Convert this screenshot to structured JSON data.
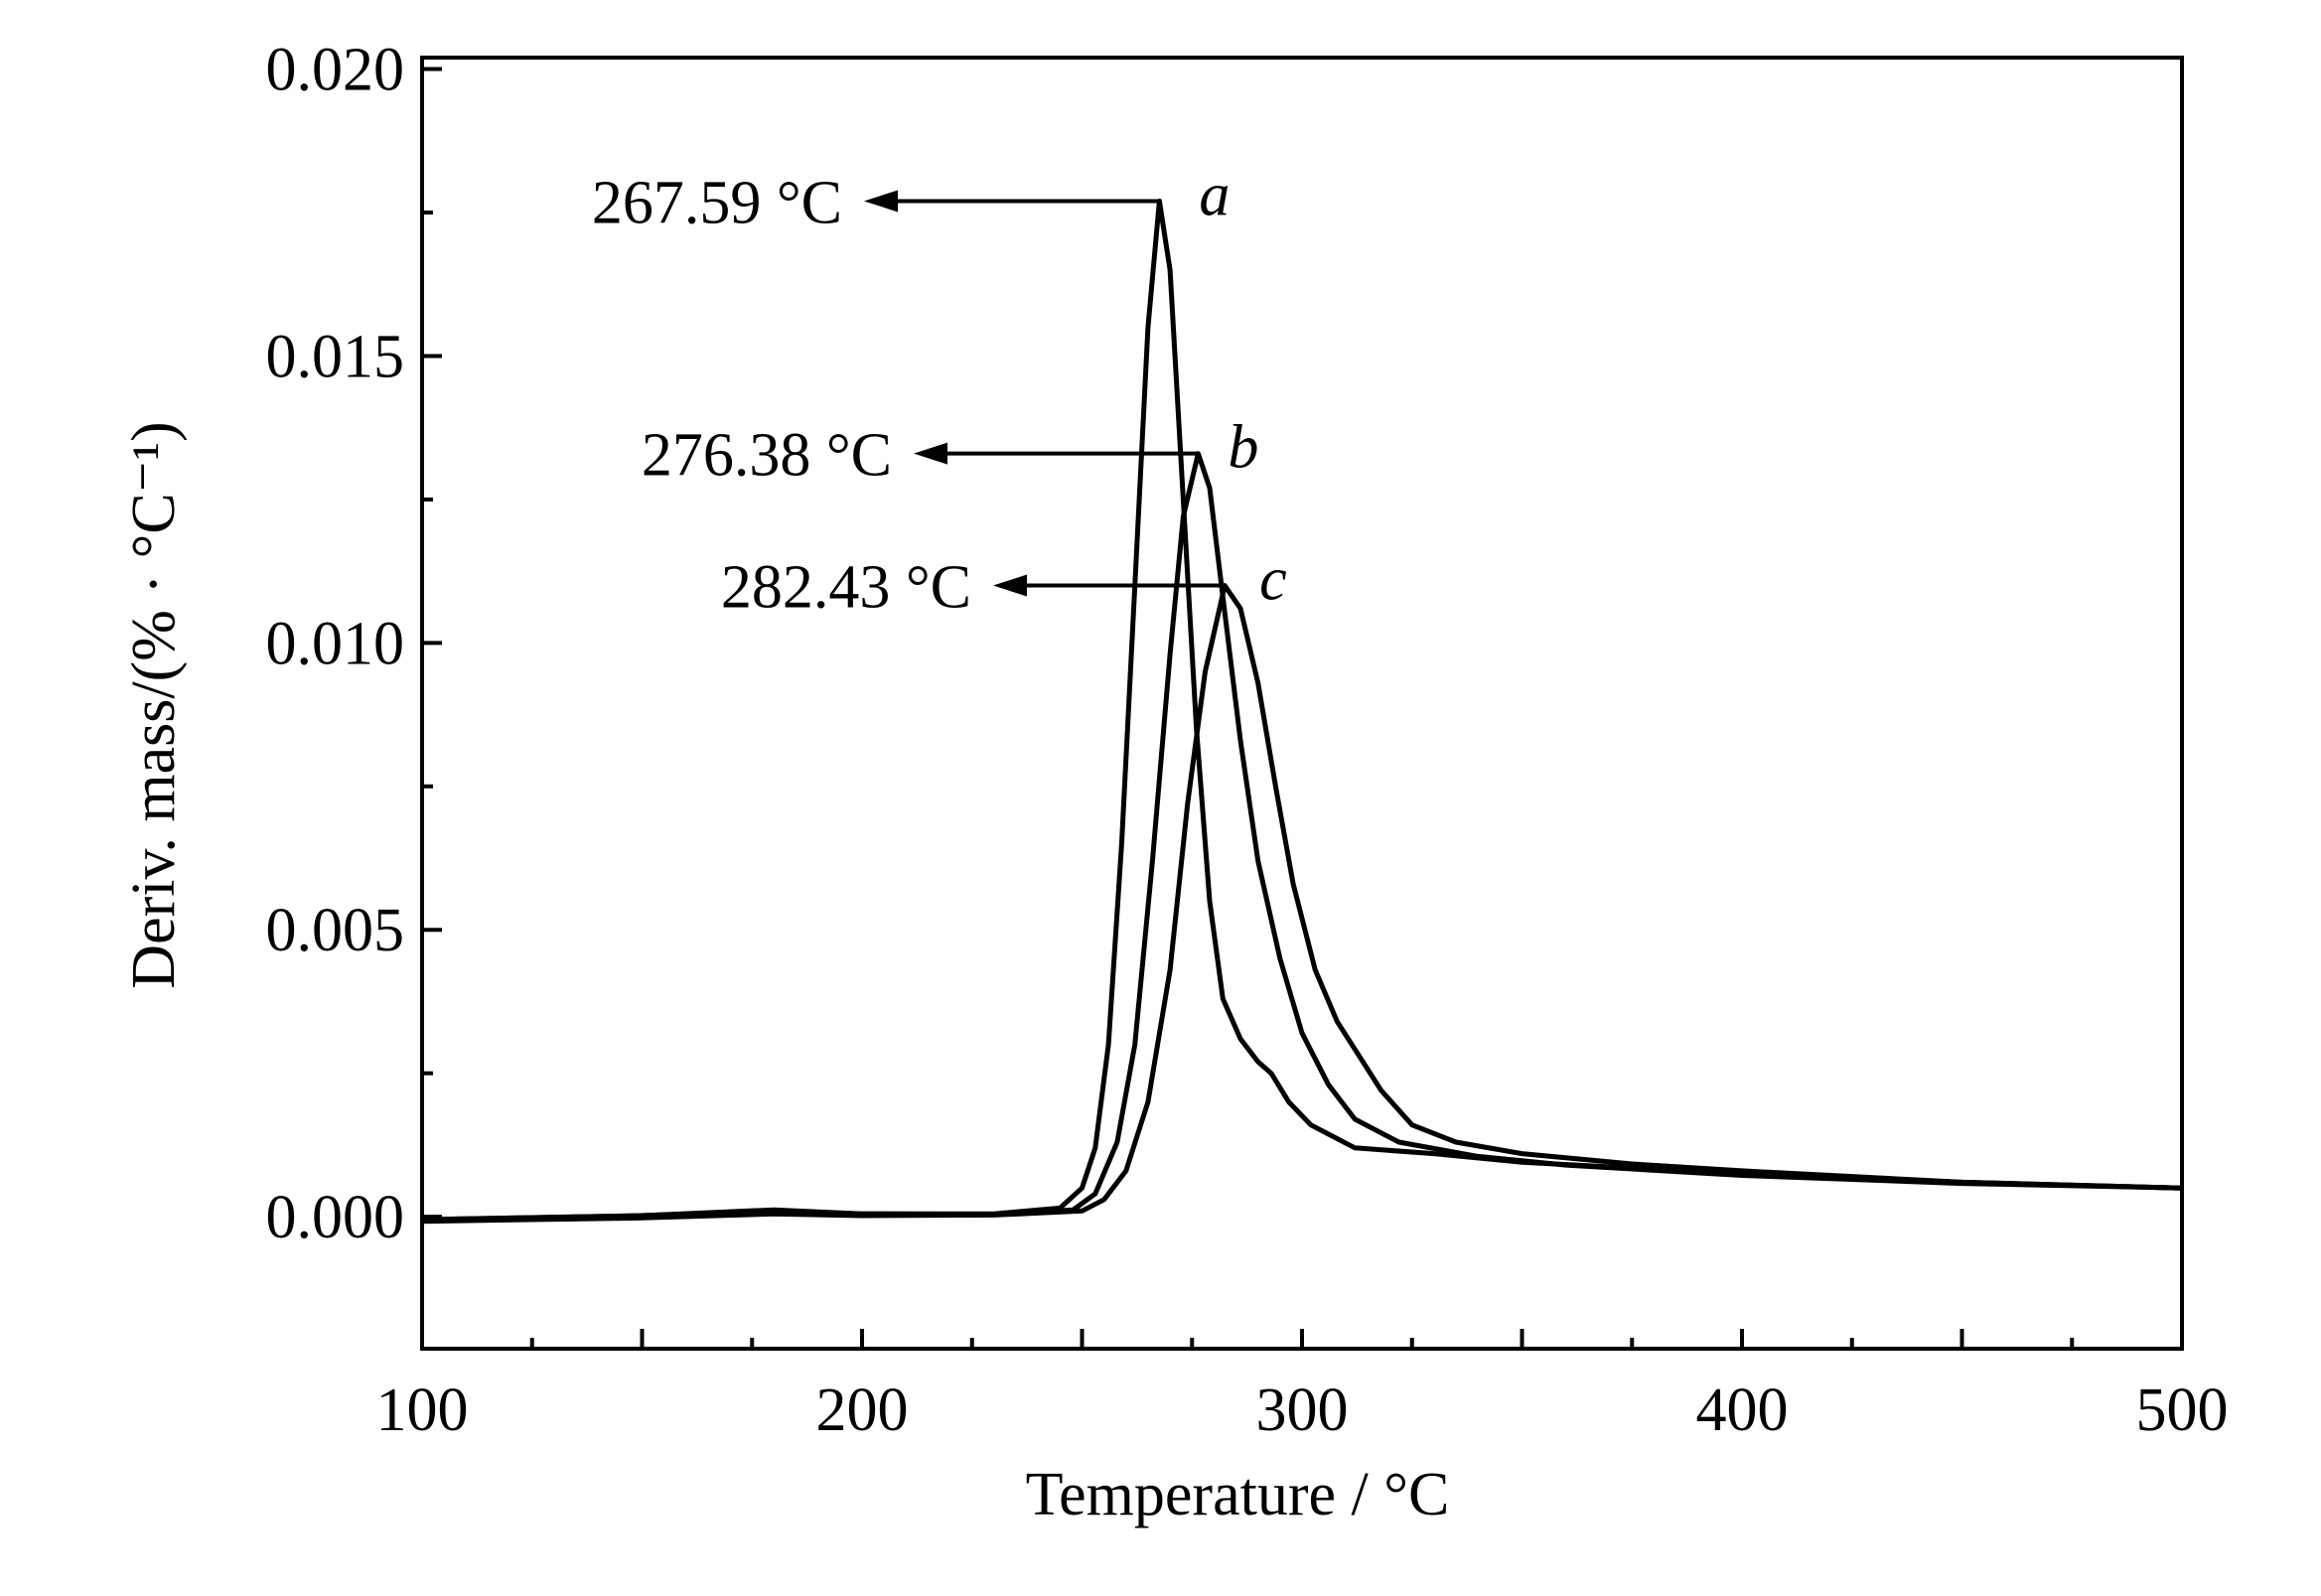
{
  "chart_data": {
    "type": "line",
    "xlabel": "Temperature / °C",
    "ylabel": "Deriv. mass/(% · °C⁻¹)",
    "xlim": [
      100,
      500
    ],
    "ylim": [
      -0.0023,
      0.0202
    ],
    "x_ticks": [
      100,
      200,
      300,
      400,
      500
    ],
    "x_tick_labels": [
      "100",
      "200",
      "300",
      "400",
      "500"
    ],
    "y_ticks": [
      0.0,
      0.005,
      0.01,
      0.015,
      0.02
    ],
    "y_tick_labels": [
      "0.000",
      "0.005",
      "0.010",
      "0.015",
      "0.020"
    ],
    "grid": false,
    "legend": "none",
    "line_color": "#000000",
    "series": [
      {
        "name": "a",
        "peak": {
          "x": 267.59,
          "y": 0.0177,
          "label": "267.59 °C"
        },
        "points": [
          [
            100,
            -5e-05
          ],
          [
            150,
            2e-05
          ],
          [
            180,
            0.00012
          ],
          [
            200,
            5e-05
          ],
          [
            230,
            5e-05
          ],
          [
            245,
            0.00015
          ],
          [
            250,
            0.0005
          ],
          [
            253,
            0.0012
          ],
          [
            256,
            0.003
          ],
          [
            259,
            0.0065
          ],
          [
            262,
            0.011
          ],
          [
            265,
            0.0155
          ],
          [
            267.59,
            0.0177
          ],
          [
            270,
            0.0165
          ],
          [
            273,
            0.0125
          ],
          [
            276,
            0.0085
          ],
          [
            279,
            0.0055
          ],
          [
            282,
            0.0038
          ],
          [
            286,
            0.0031
          ],
          [
            290,
            0.0027
          ],
          [
            293,
            0.0025
          ],
          [
            297,
            0.002
          ],
          [
            302,
            0.0016
          ],
          [
            312,
            0.0012
          ],
          [
            330,
            0.0011
          ],
          [
            350,
            0.00095
          ],
          [
            400,
            0.00075
          ],
          [
            450,
            0.0006
          ],
          [
            500,
            0.0005
          ]
        ]
      },
      {
        "name": "b",
        "peak": {
          "x": 276.38,
          "y": 0.0133,
          "label": "276.38 °C"
        },
        "points": [
          [
            100,
            -5e-05
          ],
          [
            150,
            2e-05
          ],
          [
            180,
            0.0001
          ],
          [
            200,
            5e-05
          ],
          [
            230,
            4e-05
          ],
          [
            248,
            0.00012
          ],
          [
            253,
            0.0004
          ],
          [
            258,
            0.0013
          ],
          [
            262,
            0.003
          ],
          [
            266,
            0.0062
          ],
          [
            270,
            0.0098
          ],
          [
            273,
            0.0122
          ],
          [
            276.38,
            0.0133
          ],
          [
            279,
            0.0127
          ],
          [
            282,
            0.0108
          ],
          [
            286,
            0.0083
          ],
          [
            290,
            0.0062
          ],
          [
            295,
            0.0045
          ],
          [
            300,
            0.0032
          ],
          [
            306,
            0.0023
          ],
          [
            312,
            0.0017
          ],
          [
            322,
            0.0013
          ],
          [
            340,
            0.00105
          ],
          [
            360,
            0.0009
          ],
          [
            400,
            0.00072
          ],
          [
            450,
            0.00058
          ],
          [
            500,
            0.0005
          ]
        ]
      },
      {
        "name": "c",
        "peak": {
          "x": 282.43,
          "y": 0.011,
          "label": "282.43 °C"
        },
        "points": [
          [
            100,
            -8e-05
          ],
          [
            150,
            -2e-05
          ],
          [
            180,
            5e-05
          ],
          [
            200,
            2e-05
          ],
          [
            230,
            3e-05
          ],
          [
            250,
            0.0001
          ],
          [
            255,
            0.0003
          ],
          [
            260,
            0.0008
          ],
          [
            265,
            0.002
          ],
          [
            270,
            0.0043
          ],
          [
            274,
            0.0072
          ],
          [
            278,
            0.0095
          ],
          [
            282.43,
            0.011
          ],
          [
            286,
            0.0106
          ],
          [
            290,
            0.0093
          ],
          [
            294,
            0.0075
          ],
          [
            298,
            0.0058
          ],
          [
            303,
            0.0043
          ],
          [
            308,
            0.0034
          ],
          [
            313,
            0.0028
          ],
          [
            318,
            0.0022
          ],
          [
            325,
            0.0016
          ],
          [
            335,
            0.0013
          ],
          [
            350,
            0.0011
          ],
          [
            375,
            0.00092
          ],
          [
            400,
            0.0008
          ],
          [
            450,
            0.0006
          ],
          [
            500,
            0.0005
          ]
        ]
      }
    ]
  }
}
